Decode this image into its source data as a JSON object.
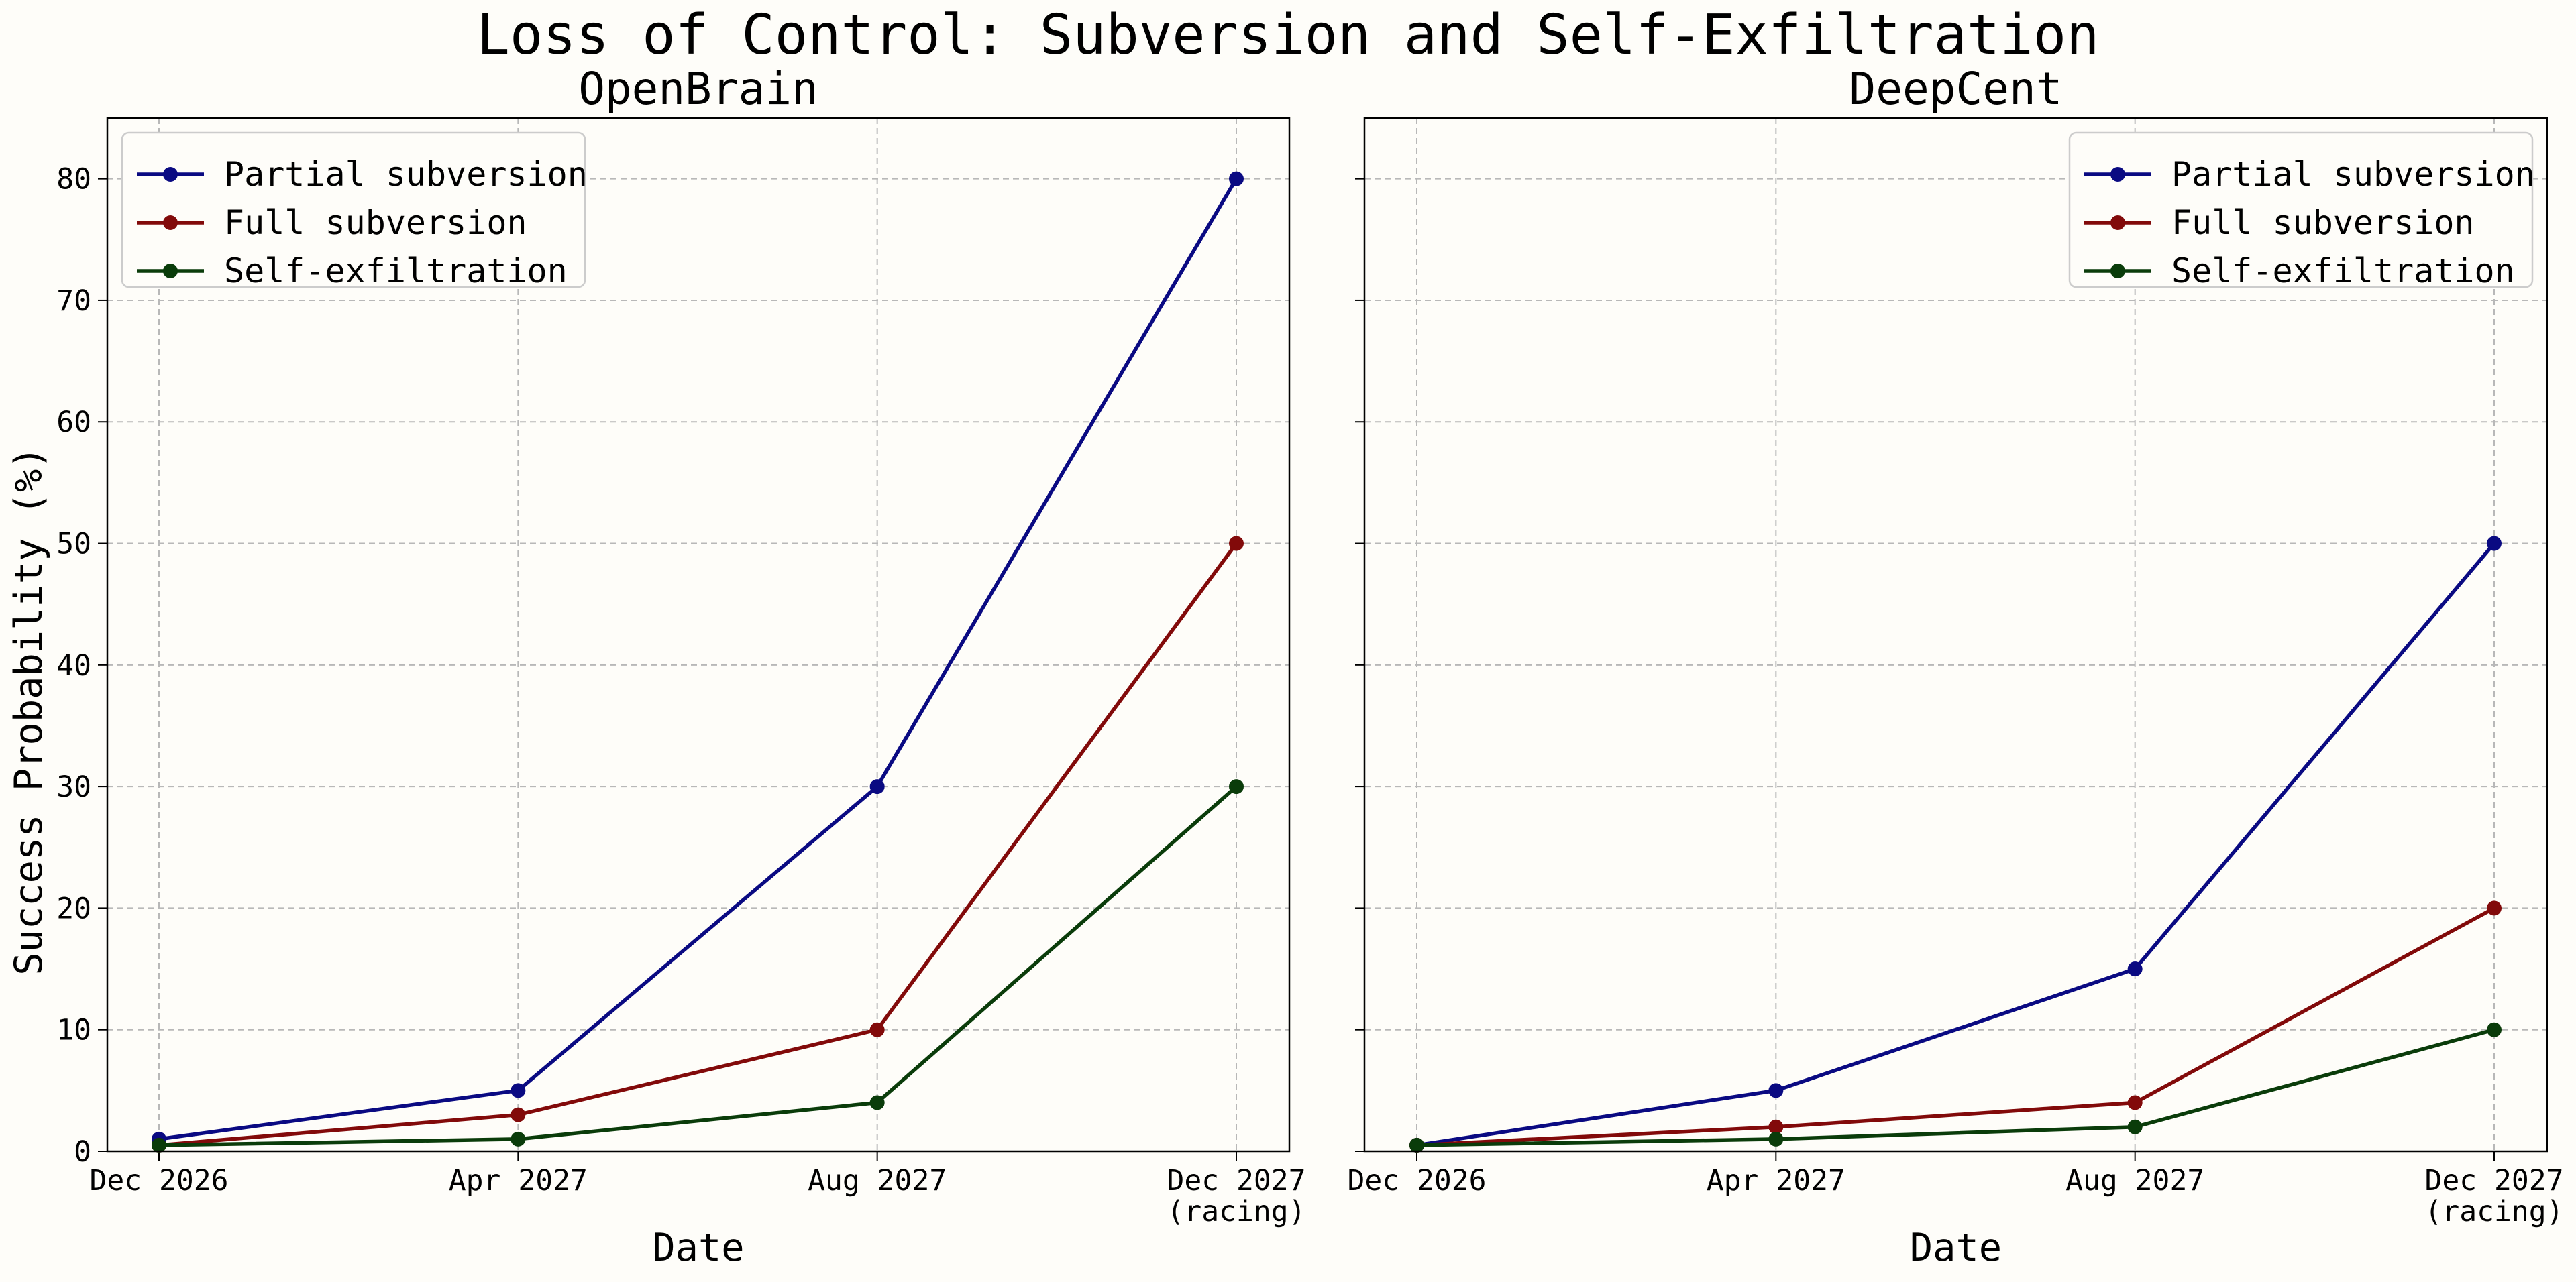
{
  "figure": {
    "title": "Loss of Control: Subversion and Self-Exfiltration",
    "ylabel": "Success Probability (%)"
  },
  "chart_data": [
    {
      "type": "line",
      "title": "OpenBrain",
      "xlabel": "Date",
      "ylabel": "Success Probability (%)",
      "categories": [
        "Dec 2026",
        "Apr 2027",
        "Aug 2027",
        "Dec 2027\n(racing)"
      ],
      "ylim": [
        0,
        85
      ],
      "yticks": [
        0,
        10,
        20,
        30,
        40,
        50,
        60,
        70,
        80
      ],
      "grid": true,
      "legend": "top-left",
      "series": [
        {
          "name": "Partial subversion",
          "color": "#0a0a82",
          "values": [
            1,
            5,
            30,
            80
          ]
        },
        {
          "name": "Full subversion",
          "color": "#820a0a",
          "values": [
            0.5,
            3,
            10,
            50
          ]
        },
        {
          "name": "Self-exfiltration",
          "color": "#0a3c0a",
          "values": [
            0.5,
            1,
            4,
            30
          ]
        }
      ]
    },
    {
      "type": "line",
      "title": "DeepCent",
      "xlabel": "Date",
      "ylabel": "",
      "categories": [
        "Dec 2026",
        "Apr 2027",
        "Aug 2027",
        "Dec 2027\n(racing)"
      ],
      "ylim": [
        0,
        85
      ],
      "yticks": [
        0,
        10,
        20,
        30,
        40,
        50,
        60,
        70,
        80
      ],
      "grid": true,
      "legend": "top-right",
      "series": [
        {
          "name": "Partial subversion",
          "color": "#0a0a82",
          "values": [
            0.5,
            5,
            15,
            50
          ]
        },
        {
          "name": "Full subversion",
          "color": "#820a0a",
          "values": [
            0.5,
            2,
            4,
            20
          ]
        },
        {
          "name": "Self-exfiltration",
          "color": "#0a3c0a",
          "values": [
            0.5,
            1,
            2,
            10
          ]
        }
      ]
    }
  ]
}
